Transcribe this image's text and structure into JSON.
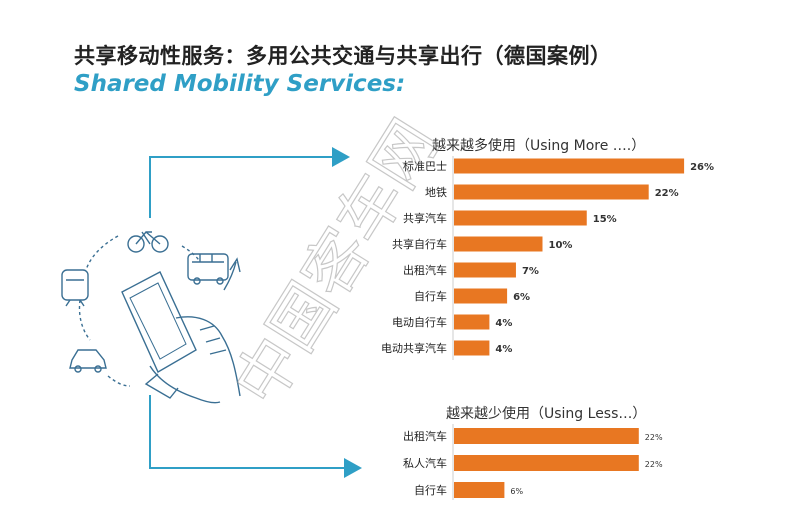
{
  "header": {
    "title_cn": "共享移动性服务：多用公共交通与共享出行（德国案例）",
    "title_en": "Shared Mobility Services:"
  },
  "watermark": "中国客车网",
  "colors": {
    "bar": "#e87722",
    "accent": "#2f9fc6",
    "axis": "#cccccc"
  },
  "icons": [
    "bicycle-icon",
    "bus-icon",
    "train-icon",
    "car-icon",
    "smartphone-hand-icon",
    "cycle-arrow-icon"
  ],
  "chart_data": [
    {
      "type": "bar",
      "orientation": "horizontal",
      "title": "越来越多使用（Using More ….）",
      "categories": [
        "标准巴士",
        "地铁",
        "共享汽车",
        "共享自行车",
        "出租汽车",
        "自行车",
        "电动自行车",
        "电动共享汽车"
      ],
      "values": [
        26,
        22,
        15,
        10,
        7,
        6,
        4,
        4
      ],
      "value_labels": [
        "26%",
        "22%",
        "15%",
        "10%",
        "7%",
        "6%",
        "4%",
        "4%"
      ],
      "unit": "%"
    },
    {
      "type": "bar",
      "orientation": "horizontal",
      "title": "越来越少使用（Using Less…）",
      "categories": [
        "出租汽车",
        "私人汽车",
        "自行车"
      ],
      "values": [
        22,
        22,
        6
      ],
      "value_labels": [
        "22%",
        "22%",
        "6%"
      ],
      "unit": "%"
    }
  ]
}
